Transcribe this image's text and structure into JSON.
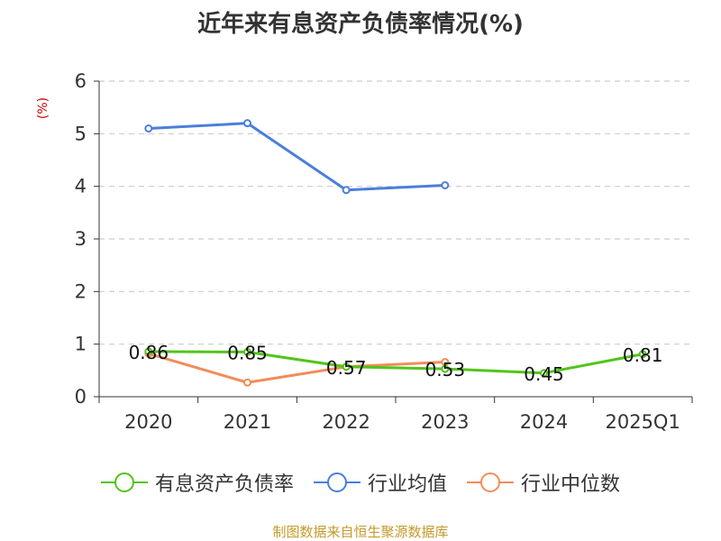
{
  "chart_data": {
    "type": "line",
    "title": "近年来有息资产负债率情况(%)",
    "y_unit": "(%)",
    "categories": [
      "2020",
      "2021",
      "2022",
      "2023",
      "2024",
      "2025Q1"
    ],
    "ylim": [
      0,
      6
    ],
    "yticks": [
      0,
      1,
      2,
      3,
      4,
      5,
      6
    ],
    "grid": true,
    "legend_position": "bottom",
    "series": [
      {
        "name": "有息资产负债率",
        "color": "#52c41a",
        "values": [
          0.86,
          0.85,
          0.57,
          0.53,
          0.45,
          0.81
        ],
        "labels": [
          "0.86",
          "0.85",
          "0.57",
          "0.53",
          "0.45",
          "0.81"
        ]
      },
      {
        "name": "行业均值",
        "color": "#4a7fdb",
        "values": [
          5.1,
          5.2,
          3.93,
          4.02,
          null,
          null
        ]
      },
      {
        "name": "行业中位数",
        "color": "#f28c5a",
        "values": [
          0.82,
          0.27,
          0.57,
          0.66,
          null,
          null
        ]
      }
    ]
  },
  "source": "制图数据来自恒生聚源数据库"
}
